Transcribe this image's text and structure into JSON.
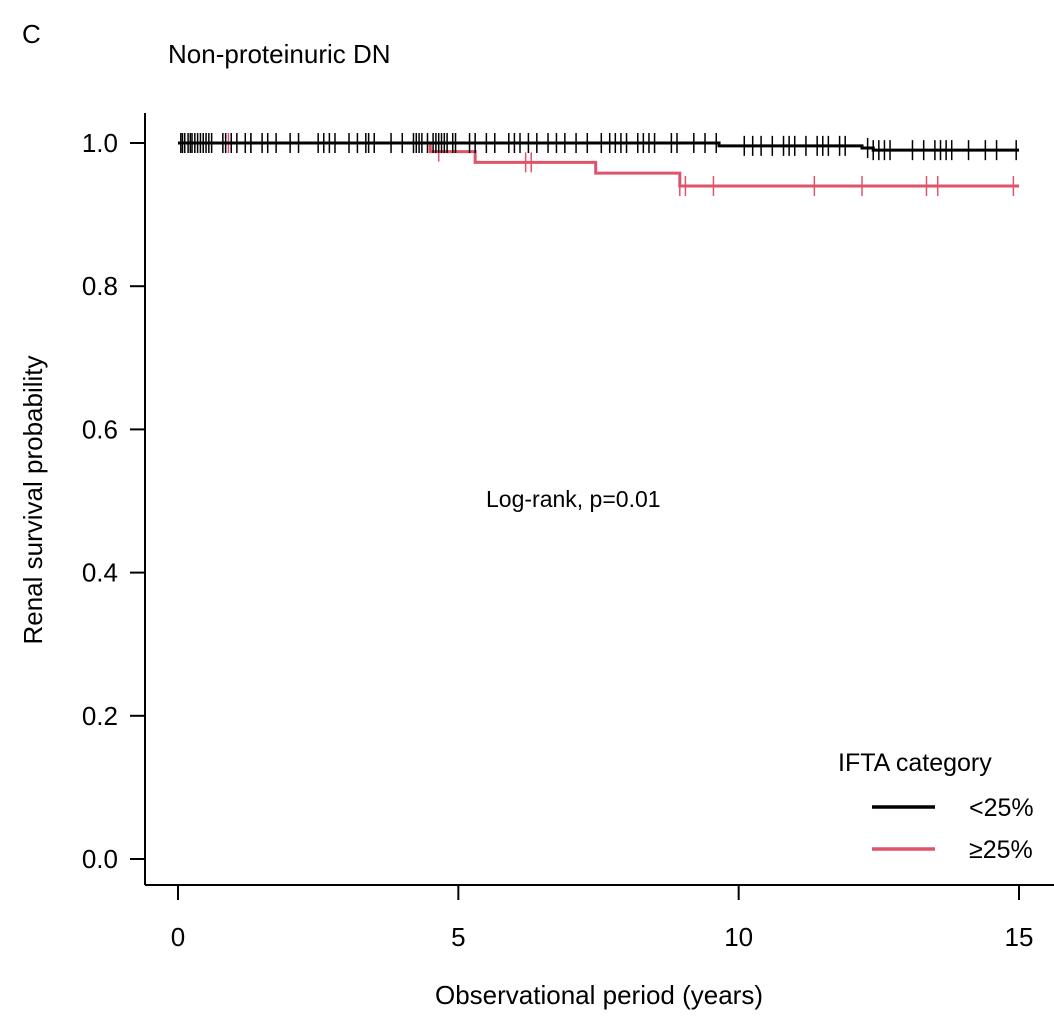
{
  "panel_label": "C",
  "chart_data": {
    "type": "line",
    "subtype": "kaplan-meier",
    "title": "Non-proteinuric DN",
    "xlabel": "Observational period (years)",
    "ylabel": "Renal survival probability",
    "xlim": [
      0,
      15
    ],
    "ylim": [
      0,
      1.0
    ],
    "x_ticks": [
      "0",
      "5",
      "10",
      "15"
    ],
    "y_ticks": [
      "0.0",
      "0.2",
      "0.4",
      "0.6",
      "0.8",
      "1.0"
    ],
    "annotation": "Log-rank,  p=0.01",
    "legend": {
      "title": "IFTA category",
      "position": "bottom-right"
    },
    "grid": false,
    "series": [
      {
        "name": "<25%",
        "color": "#000000",
        "steps": [
          [
            0,
            1.0
          ],
          [
            9.65,
            0.996
          ],
          [
            12.2,
            0.993
          ],
          [
            12.4,
            0.99
          ],
          [
            15,
            0.99
          ]
        ],
        "censor_times": [
          0.05,
          0.08,
          0.12,
          0.18,
          0.22,
          0.25,
          0.3,
          0.35,
          0.4,
          0.45,
          0.5,
          0.55,
          0.6,
          0.8,
          0.85,
          0.95,
          1.05,
          1.2,
          1.3,
          1.5,
          1.6,
          1.75,
          2.0,
          2.15,
          2.5,
          2.6,
          2.7,
          2.8,
          3.05,
          3.2,
          3.35,
          3.4,
          3.5,
          3.8,
          4.0,
          4.2,
          4.25,
          4.3,
          4.35,
          4.45,
          4.55,
          4.6,
          4.65,
          4.7,
          4.75,
          4.8,
          4.9,
          4.95,
          5.2,
          5.3,
          5.5,
          5.65,
          5.9,
          6.0,
          6.1,
          6.25,
          6.4,
          6.6,
          6.75,
          6.9,
          7.1,
          7.3,
          7.55,
          7.7,
          7.8,
          7.9,
          8.0,
          8.2,
          8.3,
          8.4,
          8.5,
          8.8,
          8.9,
          9.2,
          9.4,
          9.6,
          10.1,
          10.25,
          10.4,
          10.6,
          10.8,
          10.9,
          11.0,
          11.2,
          11.4,
          11.5,
          11.6,
          11.8,
          11.9,
          12.3,
          12.4,
          12.5,
          12.6,
          12.7,
          13.1,
          13.3,
          13.5,
          13.6,
          13.7,
          13.8,
          14.1,
          14.4,
          14.6,
          14.95
        ]
      },
      {
        "name": "≥25%",
        "color": "#DF536B",
        "steps": [
          [
            0,
            1.0
          ],
          [
            4.5,
            0.988
          ],
          [
            5.3,
            0.973
          ],
          [
            7.45,
            0.958
          ],
          [
            8.95,
            0.94
          ],
          [
            15,
            0.94
          ]
        ],
        "censor_times": [
          0.9,
          1.3,
          3.5,
          4.65,
          6.2,
          6.3,
          8.95,
          9.05,
          9.55,
          11.35,
          12.2,
          13.35,
          13.55,
          14.9
        ]
      }
    ]
  }
}
